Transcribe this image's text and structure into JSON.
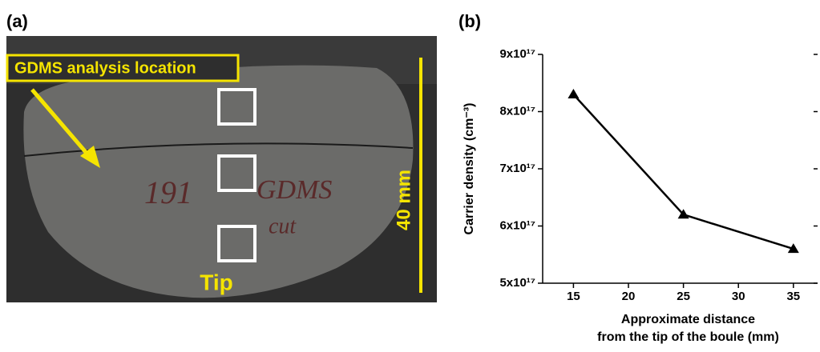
{
  "panel_a": {
    "label": "(a)",
    "callout": "GDMS analysis location",
    "tip": "Tip",
    "scale": "40 mm",
    "handwriting": [
      "191",
      "GDMS",
      "cut"
    ]
  },
  "chart_data": {
    "type": "line",
    "panel_label": "(b)",
    "ylabel": "Carrier density (cm⁻³)",
    "xlabel": [
      "Approximate distance",
      "from the tip of the boule (mm)"
    ],
    "x": [
      15,
      25,
      35
    ],
    "series": [
      {
        "color": "#000000",
        "marker": "triangle",
        "values": [
          8.3e+17,
          6.2e+17,
          5.6e+17
        ]
      }
    ],
    "xlim": [
      12.2,
      37.2
    ],
    "xticks": [
      15,
      20,
      25,
      30,
      35
    ],
    "ylim": [
      5e+17,
      9e+17
    ],
    "yticks": [
      {
        "value": 5e+17,
        "label": "5x10¹⁷"
      },
      {
        "value": 6e+17,
        "label": "6x10¹⁷"
      },
      {
        "value": 7e+17,
        "label": "7x10¹⁷"
      },
      {
        "value": 8e+17,
        "label": "8x10¹⁷"
      },
      {
        "value": 9e+17,
        "label": "9x10¹⁷"
      }
    ],
    "grid": false
  }
}
